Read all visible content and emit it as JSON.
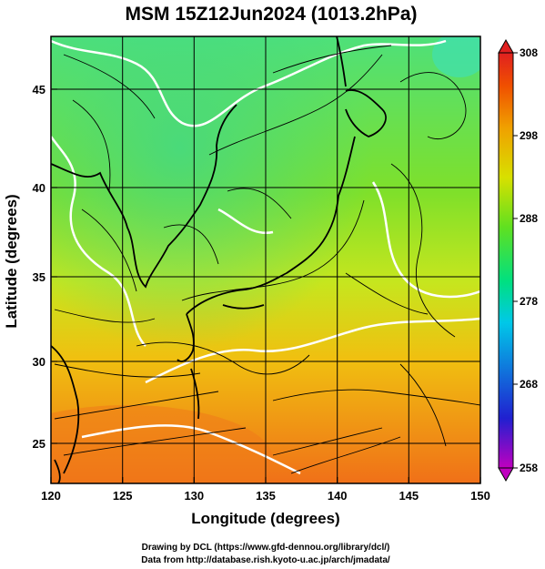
{
  "title": "MSM 15Z12Jun2024 (1013.2hPa)",
  "axes": {
    "xlabel": "Longitude (degrees)",
    "ylabel": "Latitude  (degrees)",
    "x_ticks": [
      "120",
      "125",
      "130",
      "135",
      "140",
      "145",
      "150"
    ],
    "y_ticks": [
      "25",
      "30",
      "35",
      "40",
      "45"
    ],
    "xlim": [
      120,
      150
    ],
    "ylim": [
      22.4,
      47.6
    ]
  },
  "colorbar": {
    "ticks": [
      "308",
      "298",
      "288",
      "278",
      "268",
      "258"
    ],
    "range": [
      258,
      308
    ],
    "colors": [
      "#c000c0",
      "#2020d0",
      "#00c8e8",
      "#00e080",
      "#60e020",
      "#d8e000",
      "#f0a000",
      "#f05000",
      "#e02020"
    ]
  },
  "credits": {
    "line1": "Drawing by DCL (https://www.gfd-dennou.org/library/dcl/)",
    "line2": "Data from http://database.rish.kyoto-u.ac.jp/arch/jmadata/"
  },
  "field": {
    "variable": "temperature",
    "colors": {
      "low": "#5be36a",
      "mid": "#c8e62a",
      "high": "#f08a1a",
      "coast": "#000000",
      "contour": "#ffffff",
      "stream": "#000000"
    }
  }
}
